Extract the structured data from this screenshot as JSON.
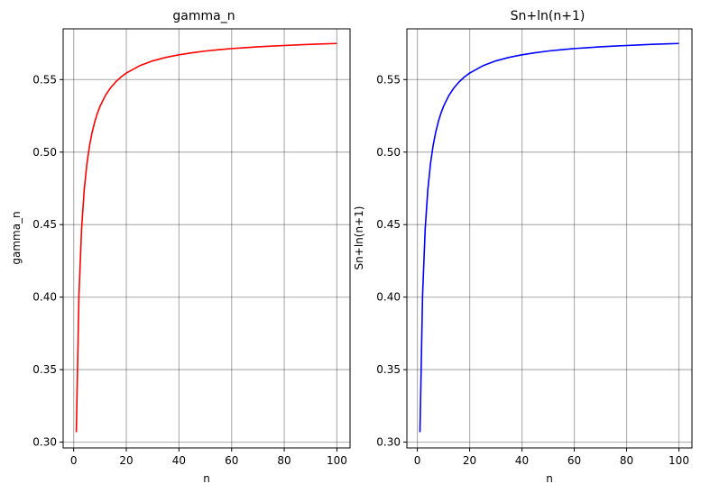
{
  "chart_data": [
    {
      "type": "line",
      "title": "gamma_n",
      "xlabel": "n",
      "ylabel": "gamma_n",
      "xlim": [
        -4.0,
        105.0
      ],
      "ylim": [
        0.296,
        0.585
      ],
      "x_ticks": [
        0,
        20,
        40,
        60,
        80,
        100
      ],
      "x_tick_labels": [
        "0",
        "20",
        "40",
        "60",
        "80",
        "100"
      ],
      "y_ticks": [
        0.3,
        0.35,
        0.4,
        0.45,
        0.5,
        0.55
      ],
      "y_tick_labels": [
        "0.30",
        "0.35",
        "0.40",
        "0.45",
        "0.50",
        "0.55"
      ],
      "grid": true,
      "series": [
        {
          "color": "#ff0000",
          "x": [
            1,
            2,
            3,
            4,
            5,
            6,
            7,
            8,
            9,
            10,
            12,
            14,
            16,
            18,
            20,
            25,
            30,
            35,
            40,
            45,
            50,
            55,
            60,
            65,
            70,
            75,
            80,
            85,
            90,
            95,
            100
          ],
          "y": [
            0.3069,
            0.4014,
            0.447,
            0.4739,
            0.4916,
            0.5042,
            0.5136,
            0.5209,
            0.5267,
            0.5315,
            0.5389,
            0.5443,
            0.5485,
            0.5518,
            0.5545,
            0.5595,
            0.5629,
            0.5653,
            0.5671,
            0.5685,
            0.5697,
            0.5706,
            0.5714,
            0.572,
            0.5726,
            0.5731,
            0.5735,
            0.5739,
            0.5743,
            0.5746,
            0.5749
          ]
        }
      ]
    },
    {
      "type": "line",
      "title": "Sn+ln(n+1)",
      "xlabel": "n",
      "ylabel": "Sn+ln(n+1)",
      "xlim": [
        -4.0,
        105.0
      ],
      "ylim": [
        0.296,
        0.585
      ],
      "x_ticks": [
        0,
        20,
        40,
        60,
        80,
        100
      ],
      "x_tick_labels": [
        "0",
        "20",
        "40",
        "60",
        "80",
        "100"
      ],
      "y_ticks": [
        0.3,
        0.35,
        0.4,
        0.45,
        0.5,
        0.55
      ],
      "y_tick_labels": [
        "0.30",
        "0.35",
        "0.40",
        "0.45",
        "0.50",
        "0.55"
      ],
      "grid": true,
      "series": [
        {
          "color": "#0000ff",
          "x": [
            1,
            2,
            3,
            4,
            5,
            6,
            7,
            8,
            9,
            10,
            12,
            14,
            16,
            18,
            20,
            25,
            30,
            35,
            40,
            45,
            50,
            55,
            60,
            65,
            70,
            75,
            80,
            85,
            90,
            95,
            100
          ],
          "y": [
            0.3069,
            0.4014,
            0.447,
            0.4739,
            0.4916,
            0.5042,
            0.5136,
            0.5209,
            0.5267,
            0.5315,
            0.5389,
            0.5443,
            0.5485,
            0.5518,
            0.5545,
            0.5595,
            0.5629,
            0.5653,
            0.5671,
            0.5685,
            0.5697,
            0.5706,
            0.5714,
            0.572,
            0.5726,
            0.5731,
            0.5735,
            0.5739,
            0.5743,
            0.5746,
            0.5749
          ]
        }
      ]
    }
  ]
}
